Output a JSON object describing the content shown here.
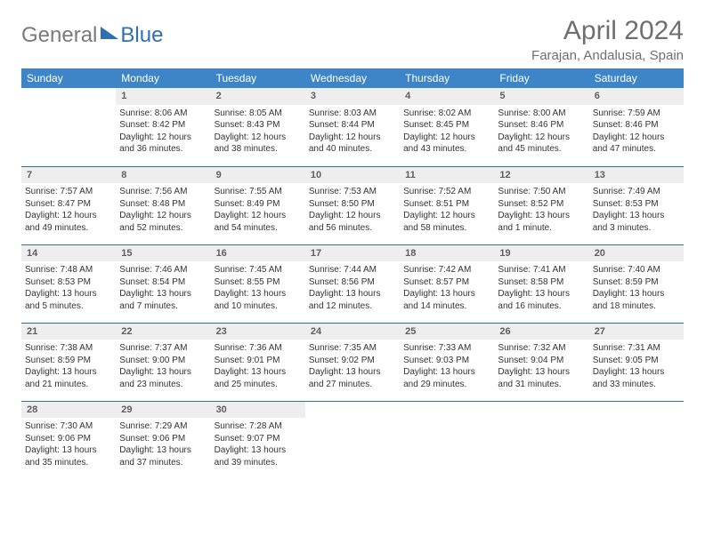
{
  "brand": {
    "part1": "General",
    "part2": "Blue"
  },
  "title": "April 2024",
  "location": "Farajan, Andalusia, Spain",
  "colors": {
    "header_bg": "#3d85c6",
    "header_text": "#ffffff",
    "rule": "#2f6fb2",
    "daynum_bg": "#eeeeee",
    "text": "#333333",
    "muted": "#6f6f6f"
  },
  "day_headers": [
    "Sunday",
    "Monday",
    "Tuesday",
    "Wednesday",
    "Thursday",
    "Friday",
    "Saturday"
  ],
  "weeks": [
    [
      {
        "empty": true
      },
      {
        "n": "1",
        "sunrise": "Sunrise: 8:06 AM",
        "sunset": "Sunset: 8:42 PM",
        "day1": "Daylight: 12 hours",
        "day2": "and 36 minutes."
      },
      {
        "n": "2",
        "sunrise": "Sunrise: 8:05 AM",
        "sunset": "Sunset: 8:43 PM",
        "day1": "Daylight: 12 hours",
        "day2": "and 38 minutes."
      },
      {
        "n": "3",
        "sunrise": "Sunrise: 8:03 AM",
        "sunset": "Sunset: 8:44 PM",
        "day1": "Daylight: 12 hours",
        "day2": "and 40 minutes."
      },
      {
        "n": "4",
        "sunrise": "Sunrise: 8:02 AM",
        "sunset": "Sunset: 8:45 PM",
        "day1": "Daylight: 12 hours",
        "day2": "and 43 minutes."
      },
      {
        "n": "5",
        "sunrise": "Sunrise: 8:00 AM",
        "sunset": "Sunset: 8:46 PM",
        "day1": "Daylight: 12 hours",
        "day2": "and 45 minutes."
      },
      {
        "n": "6",
        "sunrise": "Sunrise: 7:59 AM",
        "sunset": "Sunset: 8:46 PM",
        "day1": "Daylight: 12 hours",
        "day2": "and 47 minutes."
      }
    ],
    [
      {
        "n": "7",
        "sunrise": "Sunrise: 7:57 AM",
        "sunset": "Sunset: 8:47 PM",
        "day1": "Daylight: 12 hours",
        "day2": "and 49 minutes."
      },
      {
        "n": "8",
        "sunrise": "Sunrise: 7:56 AM",
        "sunset": "Sunset: 8:48 PM",
        "day1": "Daylight: 12 hours",
        "day2": "and 52 minutes."
      },
      {
        "n": "9",
        "sunrise": "Sunrise: 7:55 AM",
        "sunset": "Sunset: 8:49 PM",
        "day1": "Daylight: 12 hours",
        "day2": "and 54 minutes."
      },
      {
        "n": "10",
        "sunrise": "Sunrise: 7:53 AM",
        "sunset": "Sunset: 8:50 PM",
        "day1": "Daylight: 12 hours",
        "day2": "and 56 minutes."
      },
      {
        "n": "11",
        "sunrise": "Sunrise: 7:52 AM",
        "sunset": "Sunset: 8:51 PM",
        "day1": "Daylight: 12 hours",
        "day2": "and 58 minutes."
      },
      {
        "n": "12",
        "sunrise": "Sunrise: 7:50 AM",
        "sunset": "Sunset: 8:52 PM",
        "day1": "Daylight: 13 hours",
        "day2": "and 1 minute."
      },
      {
        "n": "13",
        "sunrise": "Sunrise: 7:49 AM",
        "sunset": "Sunset: 8:53 PM",
        "day1": "Daylight: 13 hours",
        "day2": "and 3 minutes."
      }
    ],
    [
      {
        "n": "14",
        "sunrise": "Sunrise: 7:48 AM",
        "sunset": "Sunset: 8:53 PM",
        "day1": "Daylight: 13 hours",
        "day2": "and 5 minutes."
      },
      {
        "n": "15",
        "sunrise": "Sunrise: 7:46 AM",
        "sunset": "Sunset: 8:54 PM",
        "day1": "Daylight: 13 hours",
        "day2": "and 7 minutes."
      },
      {
        "n": "16",
        "sunrise": "Sunrise: 7:45 AM",
        "sunset": "Sunset: 8:55 PM",
        "day1": "Daylight: 13 hours",
        "day2": "and 10 minutes."
      },
      {
        "n": "17",
        "sunrise": "Sunrise: 7:44 AM",
        "sunset": "Sunset: 8:56 PM",
        "day1": "Daylight: 13 hours",
        "day2": "and 12 minutes."
      },
      {
        "n": "18",
        "sunrise": "Sunrise: 7:42 AM",
        "sunset": "Sunset: 8:57 PM",
        "day1": "Daylight: 13 hours",
        "day2": "and 14 minutes."
      },
      {
        "n": "19",
        "sunrise": "Sunrise: 7:41 AM",
        "sunset": "Sunset: 8:58 PM",
        "day1": "Daylight: 13 hours",
        "day2": "and 16 minutes."
      },
      {
        "n": "20",
        "sunrise": "Sunrise: 7:40 AM",
        "sunset": "Sunset: 8:59 PM",
        "day1": "Daylight: 13 hours",
        "day2": "and 18 minutes."
      }
    ],
    [
      {
        "n": "21",
        "sunrise": "Sunrise: 7:38 AM",
        "sunset": "Sunset: 8:59 PM",
        "day1": "Daylight: 13 hours",
        "day2": "and 21 minutes."
      },
      {
        "n": "22",
        "sunrise": "Sunrise: 7:37 AM",
        "sunset": "Sunset: 9:00 PM",
        "day1": "Daylight: 13 hours",
        "day2": "and 23 minutes."
      },
      {
        "n": "23",
        "sunrise": "Sunrise: 7:36 AM",
        "sunset": "Sunset: 9:01 PM",
        "day1": "Daylight: 13 hours",
        "day2": "and 25 minutes."
      },
      {
        "n": "24",
        "sunrise": "Sunrise: 7:35 AM",
        "sunset": "Sunset: 9:02 PM",
        "day1": "Daylight: 13 hours",
        "day2": "and 27 minutes."
      },
      {
        "n": "25",
        "sunrise": "Sunrise: 7:33 AM",
        "sunset": "Sunset: 9:03 PM",
        "day1": "Daylight: 13 hours",
        "day2": "and 29 minutes."
      },
      {
        "n": "26",
        "sunrise": "Sunrise: 7:32 AM",
        "sunset": "Sunset: 9:04 PM",
        "day1": "Daylight: 13 hours",
        "day2": "and 31 minutes."
      },
      {
        "n": "27",
        "sunrise": "Sunrise: 7:31 AM",
        "sunset": "Sunset: 9:05 PM",
        "day1": "Daylight: 13 hours",
        "day2": "and 33 minutes."
      }
    ],
    [
      {
        "n": "28",
        "sunrise": "Sunrise: 7:30 AM",
        "sunset": "Sunset: 9:06 PM",
        "day1": "Daylight: 13 hours",
        "day2": "and 35 minutes."
      },
      {
        "n": "29",
        "sunrise": "Sunrise: 7:29 AM",
        "sunset": "Sunset: 9:06 PM",
        "day1": "Daylight: 13 hours",
        "day2": "and 37 minutes."
      },
      {
        "n": "30",
        "sunrise": "Sunrise: 7:28 AM",
        "sunset": "Sunset: 9:07 PM",
        "day1": "Daylight: 13 hours",
        "day2": "and 39 minutes."
      },
      {
        "empty": true
      },
      {
        "empty": true
      },
      {
        "empty": true
      },
      {
        "empty": true
      }
    ]
  ]
}
